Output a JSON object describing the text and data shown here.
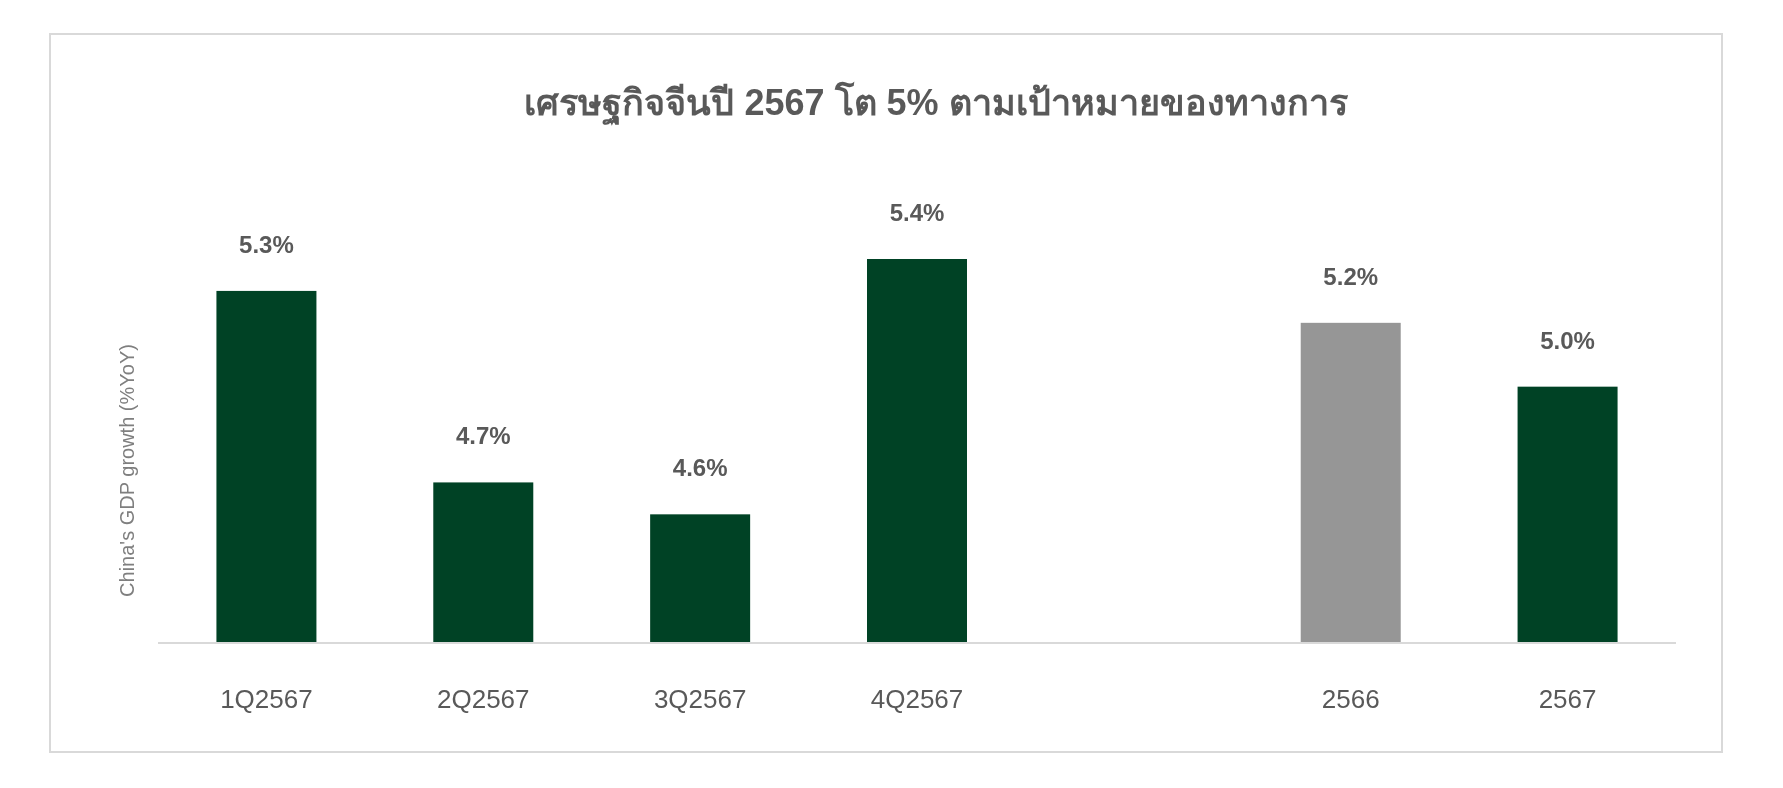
{
  "chart_data": {
    "type": "bar",
    "title": "เศรษฐกิจจีนปี 2567 โต 5% ตามเป้าหมายของทางการ",
    "ylabel": "China's GDP growth  (%YoY)",
    "categories": [
      "1Q2567",
      "2Q2567",
      "3Q2567",
      "4Q2567",
      null,
      "2566",
      "2567"
    ],
    "values": [
      5.3,
      4.7,
      4.6,
      5.4,
      null,
      5.2,
      5.0
    ],
    "colors": [
      "#004225",
      "#004225",
      "#004225",
      "#004225",
      null,
      "#969696",
      "#004225"
    ],
    "value_labels": [
      "5.3%",
      "4.7%",
      "4.6%",
      "5.4%",
      null,
      "5.2%",
      "5.0%"
    ],
    "ylim": [
      4.2,
      5.4
    ],
    "tick_labels": "x"
  }
}
